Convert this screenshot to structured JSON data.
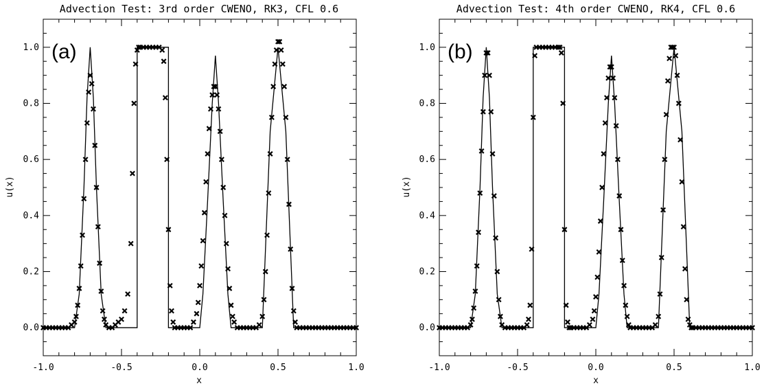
{
  "chart_data": [
    {
      "type": "line",
      "panel_label": "(a)",
      "title": "Advection Test: 3rd order CWENO, RK3, CFL 0.6",
      "xlabel": "x",
      "ylabel": "u(x)",
      "xlim": [
        -1.0,
        1.0
      ],
      "ylim": [
        -0.1,
        1.1
      ],
      "xticks": [
        -1.0,
        -0.5,
        0.0,
        0.5,
        1.0
      ],
      "xtick_labels": [
        "-1.0",
        "-0.5",
        "0.0",
        "0.5",
        "1.0"
      ],
      "yticks": [
        0.0,
        0.2,
        0.4,
        0.6,
        0.8,
        1.0
      ],
      "ytick_labels": [
        "0.0",
        "0.2",
        "0.4",
        "0.6",
        "0.8",
        "1.0"
      ],
      "series": [
        {
          "style": "solid line",
          "x": [
            -1.0,
            -0.8,
            -0.77,
            -0.74,
            -0.72,
            -0.7,
            -0.68,
            -0.66,
            -0.63,
            -0.6,
            -0.42,
            -0.4,
            -0.4,
            -0.2,
            -0.2,
            -0.18,
            0.0,
            0.02,
            0.05,
            0.08,
            0.1,
            0.12,
            0.15,
            0.18,
            0.2,
            0.4,
            0.4,
            0.45,
            0.5,
            0.55,
            0.6,
            0.6,
            1.0
          ],
          "y": [
            0.0,
            0.0,
            0.12,
            0.5,
            0.82,
            1.0,
            0.82,
            0.5,
            0.12,
            0.0,
            0.0,
            0.0,
            1.0,
            1.0,
            0.0,
            0.0,
            0.0,
            0.12,
            0.45,
            0.8,
            0.97,
            0.8,
            0.45,
            0.12,
            0.0,
            0.0,
            0.0,
            0.7,
            1.0,
            0.7,
            0.0,
            0.0,
            0.0
          ]
        },
        {
          "style": "x markers",
          "x": [
            -1.0,
            -0.98,
            -0.96,
            -0.94,
            -0.92,
            -0.9,
            -0.88,
            -0.86,
            -0.84,
            -0.82,
            -0.8,
            -0.79,
            -0.78,
            -0.77,
            -0.76,
            -0.75,
            -0.74,
            -0.73,
            -0.72,
            -0.71,
            -0.7,
            -0.69,
            -0.68,
            -0.67,
            -0.66,
            -0.65,
            -0.64,
            -0.63,
            -0.62,
            -0.61,
            -0.6,
            -0.58,
            -0.56,
            -0.54,
            -0.52,
            -0.5,
            -0.48,
            -0.46,
            -0.44,
            -0.43,
            -0.42,
            -0.41,
            -0.4,
            -0.39,
            -0.38,
            -0.36,
            -0.34,
            -0.32,
            -0.3,
            -0.28,
            -0.26,
            -0.24,
            -0.23,
            -0.22,
            -0.21,
            -0.2,
            -0.19,
            -0.18,
            -0.17,
            -0.16,
            -0.14,
            -0.12,
            -0.1,
            -0.08,
            -0.06,
            -0.04,
            -0.02,
            -0.01,
            0.0,
            0.01,
            0.02,
            0.03,
            0.04,
            0.05,
            0.06,
            0.07,
            0.08,
            0.09,
            0.1,
            0.11,
            0.12,
            0.13,
            0.14,
            0.15,
            0.16,
            0.17,
            0.18,
            0.19,
            0.2,
            0.21,
            0.22,
            0.24,
            0.26,
            0.28,
            0.3,
            0.32,
            0.34,
            0.36,
            0.38,
            0.4,
            0.41,
            0.42,
            0.43,
            0.44,
            0.45,
            0.46,
            0.47,
            0.48,
            0.49,
            0.5,
            0.51,
            0.52,
            0.53,
            0.54,
            0.55,
            0.56,
            0.57,
            0.58,
            0.59,
            0.6,
            0.61,
            0.62,
            0.64,
            0.66,
            0.68,
            0.7,
            0.72,
            0.74,
            0.76,
            0.78,
            0.8,
            0.82,
            0.84,
            0.86,
            0.88,
            0.9,
            0.92,
            0.94,
            0.96,
            0.98,
            1.0
          ],
          "y": [
            0.0,
            0.0,
            0.0,
            0.0,
            0.0,
            0.0,
            0.0,
            0.0,
            0.0,
            0.01,
            0.02,
            0.04,
            0.08,
            0.14,
            0.22,
            0.33,
            0.46,
            0.6,
            0.73,
            0.84,
            0.9,
            0.87,
            0.78,
            0.65,
            0.5,
            0.36,
            0.23,
            0.13,
            0.06,
            0.03,
            0.01,
            0.0,
            0.0,
            0.01,
            0.02,
            0.03,
            0.06,
            0.12,
            0.3,
            0.55,
            0.8,
            0.94,
            0.99,
            1.0,
            1.0,
            1.0,
            1.0,
            1.0,
            1.0,
            1.0,
            1.0,
            0.99,
            0.95,
            0.82,
            0.6,
            0.35,
            0.15,
            0.06,
            0.02,
            0.0,
            0.0,
            0.0,
            0.0,
            0.0,
            0.0,
            0.02,
            0.05,
            0.09,
            0.15,
            0.22,
            0.31,
            0.41,
            0.52,
            0.62,
            0.71,
            0.78,
            0.83,
            0.86,
            0.86,
            0.83,
            0.78,
            0.7,
            0.6,
            0.5,
            0.4,
            0.3,
            0.21,
            0.14,
            0.08,
            0.04,
            0.02,
            0.0,
            0.0,
            0.0,
            0.0,
            0.0,
            0.0,
            0.0,
            0.01,
            0.04,
            0.1,
            0.2,
            0.33,
            0.48,
            0.62,
            0.75,
            0.86,
            0.94,
            0.99,
            1.02,
            1.02,
            0.99,
            0.94,
            0.86,
            0.75,
            0.6,
            0.44,
            0.28,
            0.14,
            0.06,
            0.02,
            0.0,
            0.0,
            0.0,
            0.0,
            0.0,
            0.0,
            0.0,
            0.0,
            0.0,
            0.0,
            0.0,
            0.0,
            0.0,
            0.0,
            0.0,
            0.0,
            0.0,
            0.0,
            0.0,
            0.0
          ]
        }
      ]
    },
    {
      "type": "line",
      "panel_label": "(b)",
      "title": "Advection Test: 4th order CWENO, RK4, CFL 0.6",
      "xlabel": "x",
      "ylabel": "u(x)",
      "xlim": [
        -1.0,
        1.0
      ],
      "ylim": [
        -0.1,
        1.1
      ],
      "xticks": [
        -1.0,
        -0.5,
        0.0,
        0.5,
        1.0
      ],
      "xtick_labels": [
        "-1.0",
        "-0.5",
        "0.0",
        "0.5",
        "1.0"
      ],
      "yticks": [
        0.0,
        0.2,
        0.4,
        0.6,
        0.8,
        1.0
      ],
      "ytick_labels": [
        "0.0",
        "0.2",
        "0.4",
        "0.6",
        "0.8",
        "1.0"
      ],
      "series": [
        {
          "style": "solid line",
          "x": [
            -1.0,
            -0.8,
            -0.77,
            -0.74,
            -0.72,
            -0.7,
            -0.68,
            -0.66,
            -0.63,
            -0.6,
            -0.42,
            -0.4,
            -0.4,
            -0.2,
            -0.2,
            -0.18,
            0.0,
            0.02,
            0.05,
            0.08,
            0.1,
            0.12,
            0.15,
            0.18,
            0.2,
            0.4,
            0.4,
            0.45,
            0.5,
            0.55,
            0.6,
            0.6,
            1.0
          ],
          "y": [
            0.0,
            0.0,
            0.12,
            0.5,
            0.82,
            1.0,
            0.82,
            0.5,
            0.12,
            0.0,
            0.0,
            0.0,
            1.0,
            1.0,
            0.0,
            0.0,
            0.0,
            0.12,
            0.45,
            0.8,
            0.97,
            0.8,
            0.45,
            0.12,
            0.0,
            0.0,
            0.0,
            0.7,
            1.0,
            0.7,
            0.0,
            0.0,
            0.0
          ]
        },
        {
          "style": "x markers",
          "x": [
            -1.0,
            -0.98,
            -0.96,
            -0.94,
            -0.92,
            -0.9,
            -0.88,
            -0.86,
            -0.84,
            -0.82,
            -0.8,
            -0.79,
            -0.78,
            -0.77,
            -0.76,
            -0.75,
            -0.74,
            -0.73,
            -0.72,
            -0.71,
            -0.7,
            -0.69,
            -0.68,
            -0.67,
            -0.66,
            -0.65,
            -0.64,
            -0.63,
            -0.62,
            -0.61,
            -0.6,
            -0.58,
            -0.56,
            -0.54,
            -0.52,
            -0.5,
            -0.48,
            -0.46,
            -0.44,
            -0.43,
            -0.42,
            -0.41,
            -0.4,
            -0.39,
            -0.38,
            -0.36,
            -0.34,
            -0.32,
            -0.3,
            -0.28,
            -0.26,
            -0.24,
            -0.23,
            -0.22,
            -0.21,
            -0.2,
            -0.19,
            -0.18,
            -0.17,
            -0.16,
            -0.14,
            -0.12,
            -0.1,
            -0.08,
            -0.06,
            -0.04,
            -0.02,
            -0.01,
            0.0,
            0.01,
            0.02,
            0.03,
            0.04,
            0.05,
            0.06,
            0.07,
            0.08,
            0.09,
            0.1,
            0.11,
            0.12,
            0.13,
            0.14,
            0.15,
            0.16,
            0.17,
            0.18,
            0.19,
            0.2,
            0.21,
            0.22,
            0.24,
            0.26,
            0.28,
            0.3,
            0.32,
            0.34,
            0.36,
            0.38,
            0.4,
            0.41,
            0.42,
            0.43,
            0.44,
            0.45,
            0.46,
            0.47,
            0.48,
            0.49,
            0.5,
            0.51,
            0.52,
            0.53,
            0.54,
            0.55,
            0.56,
            0.57,
            0.58,
            0.59,
            0.6,
            0.61,
            0.62,
            0.64,
            0.66,
            0.68,
            0.7,
            0.72,
            0.74,
            0.76,
            0.78,
            0.8,
            0.82,
            0.84,
            0.86,
            0.88,
            0.9,
            0.92,
            0.94,
            0.96,
            0.98,
            1.0
          ],
          "y": [
            0.0,
            0.0,
            0.0,
            0.0,
            0.0,
            0.0,
            0.0,
            0.0,
            0.0,
            0.0,
            0.01,
            0.03,
            0.07,
            0.13,
            0.22,
            0.34,
            0.48,
            0.63,
            0.77,
            0.9,
            0.98,
            0.98,
            0.9,
            0.77,
            0.62,
            0.47,
            0.32,
            0.2,
            0.1,
            0.04,
            0.01,
            0.0,
            0.0,
            0.0,
            0.0,
            0.0,
            0.0,
            0.0,
            0.01,
            0.03,
            0.08,
            0.28,
            0.75,
            0.97,
            1.0,
            1.0,
            1.0,
            1.0,
            1.0,
            1.0,
            1.0,
            1.0,
            1.0,
            0.98,
            0.8,
            0.35,
            0.08,
            0.02,
            0.0,
            0.0,
            0.0,
            0.0,
            0.0,
            0.0,
            0.0,
            0.01,
            0.03,
            0.06,
            0.11,
            0.18,
            0.27,
            0.38,
            0.5,
            0.62,
            0.73,
            0.82,
            0.89,
            0.93,
            0.93,
            0.89,
            0.82,
            0.72,
            0.6,
            0.47,
            0.35,
            0.24,
            0.15,
            0.08,
            0.04,
            0.01,
            0.0,
            0.0,
            0.0,
            0.0,
            0.0,
            0.0,
            0.0,
            0.0,
            0.01,
            0.04,
            0.12,
            0.25,
            0.42,
            0.6,
            0.76,
            0.88,
            0.96,
            1.0,
            1.0,
            1.0,
            0.97,
            0.9,
            0.8,
            0.67,
            0.52,
            0.36,
            0.21,
            0.1,
            0.03,
            0.01,
            0.0,
            0.0,
            0.0,
            0.0,
            0.0,
            0.0,
            0.0,
            0.0,
            0.0,
            0.0,
            0.0,
            0.0,
            0.0,
            0.0,
            0.0,
            0.0,
            0.0,
            0.0,
            0.0,
            0.0,
            0.0
          ]
        }
      ]
    }
  ]
}
